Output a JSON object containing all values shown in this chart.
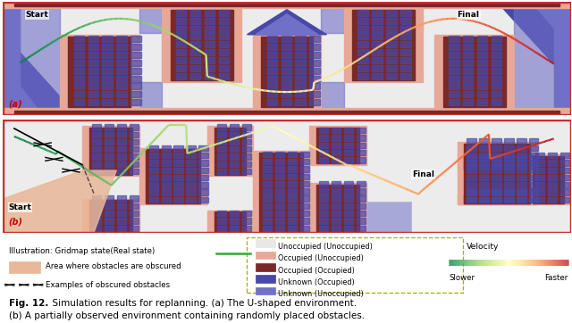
{
  "fig_width": 6.4,
  "fig_height": 3.62,
  "dpi": 100,
  "bg_color": "#ffffff",
  "panel_a_label": "(a)",
  "panel_b_label": "(b)",
  "panel_a_start": "Start",
  "panel_a_final": "Final",
  "panel_b_start": "Start",
  "panel_b_final": "Final",
  "color_bg": "#e8e8f0",
  "color_occupied_unoccupied": "#e8a898",
  "color_occupied_occupied": "#7a2828",
  "color_unknown_occupied": "#4848a8",
  "color_unknown_unoccupied": "#7070c8",
  "color_obscured_area": "#e8b898",
  "color_border": "#c83030",
  "color_path_green": "#44aa22",
  "legend_items": [
    {
      "label": "Unoccupied (Unoccupied)",
      "color": "#e8e8e8",
      "edgecolor": "#999999"
    },
    {
      "label": "Occupied (Unoccupied)",
      "color": "#e8a898",
      "edgecolor": "#999999"
    },
    {
      "label": "Occupied (Occupied)",
      "color": "#7a2828",
      "edgecolor": "#999999"
    },
    {
      "label": "Unknown (Occupied)",
      "color": "#4848a8",
      "edgecolor": "#999999"
    },
    {
      "label": "Unknown (Unoccupied)",
      "color": "#7070c8",
      "edgecolor": "#999999"
    }
  ],
  "velocity_label": "Velocity",
  "velocity_slower": "Slower",
  "velocity_faster": "Faster",
  "illus_label": "Illustration: Gridmap state(Real state)",
  "area_label": "Area where obstacles are obscured",
  "examples_label": "Examples of obscured obstacles",
  "caption_bold": "Fig. 12.",
  "caption_rest": "  Simulation results for replanning. (a) The U-shaped environment.",
  "caption2": "(b) A partially observed environment containing randomly placed obstacles."
}
